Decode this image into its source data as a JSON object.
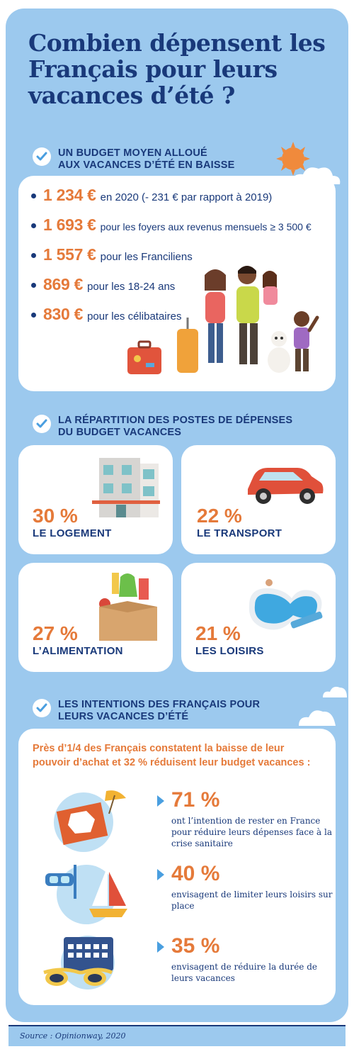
{
  "title": "Combien dépensent les Français pour leurs vacances d’été ?",
  "section1": {
    "heading_line1": "UN BUDGET MOYEN ALLOUÉ",
    "heading_line2": "AUX VACANCES D’ÉTÉ EN BAISSE",
    "items": [
      {
        "amount": "1 234 €",
        "text": "en 2020 (- 231 € par rapport à 2019)"
      },
      {
        "amount": "1 693 €",
        "text": "pour les foyers aux revenus mensuels ≥ 3 500 €"
      },
      {
        "amount": "1 557 €",
        "text": "pour les Franciliens"
      },
      {
        "amount": "869 €",
        "text": "pour les 18-24 ans"
      },
      {
        "amount": "830 €",
        "text": "pour les célibataires"
      }
    ]
  },
  "section2": {
    "heading_line1": "LA RÉPARTITION DES POSTES DE DÉPENSES",
    "heading_line2": "DU BUDGET VACANCES",
    "cards": [
      {
        "percent": "30 %",
        "label": "LE LOGEMENT",
        "icon": "building-icon"
      },
      {
        "percent": "22 %",
        "label": "LE TRANSPORT",
        "icon": "car-icon"
      },
      {
        "percent": "27 %",
        "label": "L’ALIMENTATION",
        "icon": "grocery-box-icon"
      },
      {
        "percent": "21 %",
        "label": "LES LOISIRS",
        "icon": "swimming-pool-icon"
      }
    ]
  },
  "section3": {
    "heading_line1": "LES INTENTIONS DES FRANÇAIS POUR",
    "heading_line2": "LEURS VACANCES D’ÉTÉ",
    "intro": "Près d’1/4 des Français constatent la baisse de leur pouvoir d’achat et 32 % réduisent leur budget vacances :",
    "stats": [
      {
        "percent": "71 %",
        "text": "ont l’intention de rester en France pour réduire leurs dépenses face à la crise sanitaire",
        "icon": "france-towel-icon"
      },
      {
        "percent": "40 %",
        "text": "envisagent de limiter leurs loisirs sur place",
        "icon": "snorkel-sailboat-icon"
      },
      {
        "percent": "35 %",
        "text": "envisagent de réduire la durée de leurs vacances",
        "icon": "calendar-sunglasses-icon"
      }
    ]
  },
  "source": "Source : Opinionway, 2020",
  "colors": {
    "panel": "#9cc9ee",
    "navy": "#19397a",
    "orange": "#e57a3a",
    "white": "#ffffff"
  }
}
